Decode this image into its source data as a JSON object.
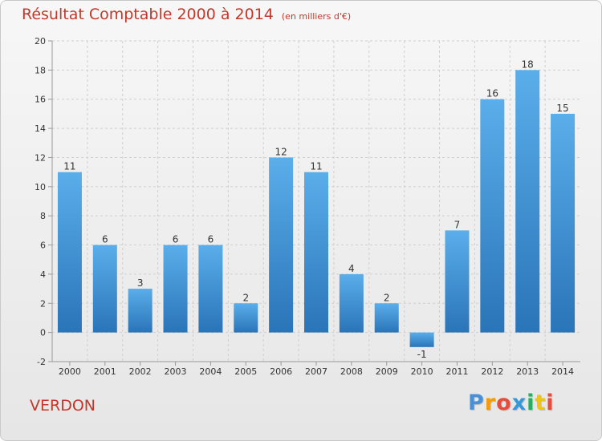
{
  "chart_data": {
    "type": "bar",
    "title": "Résultat Comptable 2000 à 2014",
    "subtitle": "(en milliers d'€)",
    "categories": [
      "2000",
      "2001",
      "2002",
      "2003",
      "2004",
      "2005",
      "2006",
      "2007",
      "2008",
      "2009",
      "2010",
      "2011",
      "2012",
      "2013",
      "2014"
    ],
    "values": [
      11,
      6,
      3,
      6,
      6,
      2,
      12,
      11,
      4,
      2,
      -1,
      7,
      16,
      18,
      15
    ],
    "value_labels": [
      "11",
      "6",
      "3",
      "6",
      "6",
      "2",
      "12",
      "11",
      "4",
      "2",
      "-1",
      "7",
      "16",
      "18",
      "15"
    ],
    "ylim": [
      -2,
      20
    ],
    "yticks": [
      -2,
      0,
      2,
      4,
      6,
      8,
      10,
      12,
      14,
      16,
      18,
      20
    ],
    "ytick_labels": [
      "-2",
      "0",
      "2",
      "4",
      "6",
      "8",
      "10",
      "12",
      "14",
      "16",
      "18",
      "20"
    ],
    "grid": true,
    "bar_color": "#3d8fd6",
    "bar_color_light": "#5aaeea",
    "bar_color_dark": "#2a74b8"
  },
  "footer": {
    "commune": "VERDON",
    "logo_letters": [
      "P",
      "r",
      "o",
      "x",
      "i",
      "t",
      "i"
    ],
    "logo_colors": [
      "#4a90d9",
      "#f39c12",
      "#e74c3c",
      "#3498db",
      "#27ae60",
      "#f1c40f",
      "#e74c3c"
    ]
  },
  "colors": {
    "title": "#c0392b",
    "grid": "#cfcfcf",
    "axis": "#999999"
  }
}
